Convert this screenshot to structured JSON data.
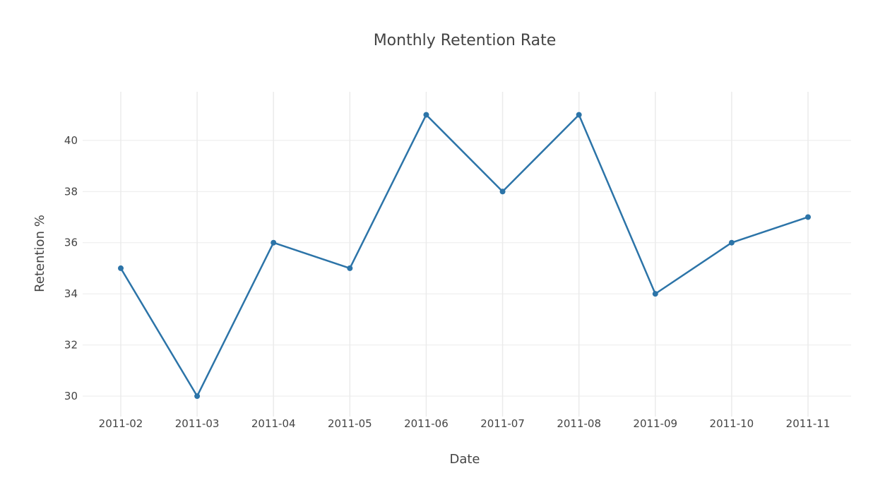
{
  "chart_data": {
    "type": "line",
    "title": "Monthly Retention Rate",
    "xlabel": "Date",
    "ylabel": "Retention %",
    "x": [
      "2011-02",
      "2011-03",
      "2011-04",
      "2011-05",
      "2011-06",
      "2011-07",
      "2011-08",
      "2011-09",
      "2011-10",
      "2011-11"
    ],
    "series": [
      {
        "values": [
          35,
          30,
          36,
          35,
          41,
          38,
          41,
          34,
          36,
          37
        ],
        "color": "#2c74a8"
      }
    ],
    "yticks": [
      30,
      32,
      34,
      36,
      38,
      40
    ],
    "ylim": [
      29.2,
      41.9
    ],
    "grid": true,
    "legend": "none"
  }
}
